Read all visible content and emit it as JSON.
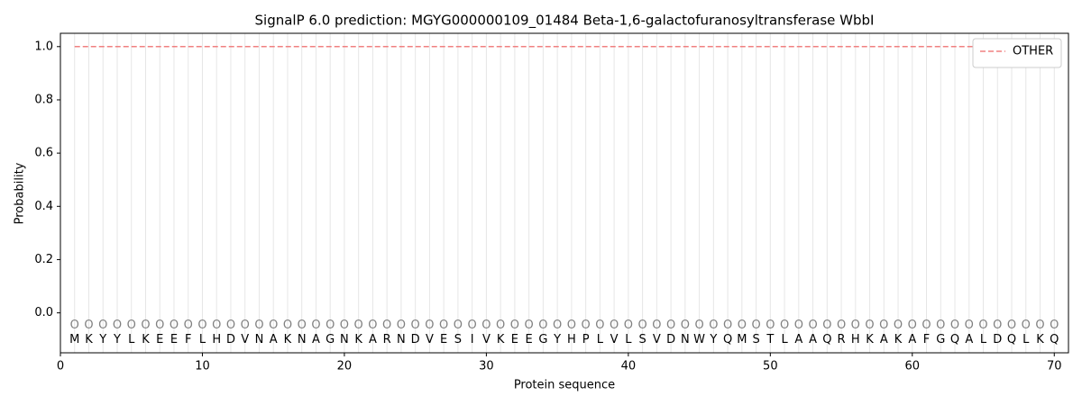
{
  "chart_data": {
    "type": "line",
    "title": "SignalP 6.0 prediction: MGYG000000109_01484 Beta-1,6-galactofuranosyltransferase WbbI",
    "x_label": "Protein sequence",
    "y_label": "Probability",
    "x": [
      1,
      2,
      3,
      4,
      5,
      6,
      7,
      8,
      9,
      10,
      11,
      12,
      13,
      14,
      15,
      16,
      17,
      18,
      19,
      20,
      21,
      22,
      23,
      24,
      25,
      26,
      27,
      28,
      29,
      30,
      31,
      32,
      33,
      34,
      35,
      36,
      37,
      38,
      39,
      40,
      41,
      42,
      43,
      44,
      45,
      46,
      47,
      48,
      49,
      50,
      51,
      52,
      53,
      54,
      55,
      56,
      57,
      58,
      59,
      60,
      61,
      62,
      63,
      64,
      65,
      66,
      67,
      68,
      69,
      70
    ],
    "residues": [
      "M",
      "K",
      "Y",
      "Y",
      "L",
      "K",
      "E",
      "E",
      "F",
      "L",
      "H",
      "D",
      "V",
      "N",
      "A",
      "K",
      "N",
      "A",
      "G",
      "N",
      "K",
      "A",
      "R",
      "N",
      "D",
      "V",
      "E",
      "S",
      "I",
      "V",
      "K",
      "E",
      "E",
      "G",
      "Y",
      "H",
      "P",
      "L",
      "V",
      "L",
      "S",
      "V",
      "D",
      "N",
      "W",
      "Y",
      "Q",
      "M",
      "S",
      "T",
      "L",
      "A",
      "A",
      "Q",
      "R",
      "H",
      "K",
      "A",
      "K",
      "A",
      "F",
      "G",
      "Q",
      "A",
      "L",
      "D",
      "Q",
      "L",
      "K",
      "Q"
    ],
    "predicted_labels": [
      "O",
      "O",
      "O",
      "O",
      "O",
      "O",
      "O",
      "O",
      "O",
      "O",
      "O",
      "O",
      "O",
      "O",
      "O",
      "O",
      "O",
      "O",
      "O",
      "O",
      "O",
      "O",
      "O",
      "O",
      "O",
      "O",
      "O",
      "O",
      "O",
      "O",
      "O",
      "O",
      "O",
      "O",
      "O",
      "O",
      "O",
      "O",
      "O",
      "O",
      "O",
      "O",
      "O",
      "O",
      "O",
      "O",
      "O",
      "O",
      "O",
      "O",
      "O",
      "O",
      "O",
      "O",
      "O",
      "O",
      "O",
      "O",
      "O",
      "O",
      "O",
      "O",
      "O",
      "O",
      "O",
      "O",
      "O",
      "O",
      "O",
      "O"
    ],
    "series": [
      {
        "name": "OTHER",
        "color": "#f08080",
        "dashed": true,
        "values": [
          1,
          1,
          1,
          1,
          1,
          1,
          1,
          1,
          1,
          1,
          1,
          1,
          1,
          1,
          1,
          1,
          1,
          1,
          1,
          1,
          1,
          1,
          1,
          1,
          1,
          1,
          1,
          1,
          1,
          1,
          1,
          1,
          1,
          1,
          1,
          1,
          1,
          1,
          1,
          1,
          1,
          1,
          1,
          1,
          1,
          1,
          1,
          1,
          1,
          1,
          1,
          1,
          1,
          1,
          1,
          1,
          1,
          1,
          1,
          1,
          1,
          1,
          1,
          1,
          1,
          1,
          1,
          1,
          1,
          1
        ]
      }
    ],
    "xlim": [
      0,
      71
    ],
    "ylim": [
      -0.15,
      1.05
    ],
    "xticks": [
      0,
      10,
      20,
      30,
      40,
      50,
      60,
      70
    ],
    "yticks": [
      {
        "value": 0,
        "label": "0.0"
      },
      {
        "value": 0.2,
        "label": "0.2"
      },
      {
        "value": 0.4,
        "label": "0.4"
      },
      {
        "value": 0.6,
        "label": "0.6"
      },
      {
        "value": 0.8,
        "label": "0.8"
      },
      {
        "value": 1,
        "label": "1.0"
      }
    ],
    "legend": "upper right"
  }
}
